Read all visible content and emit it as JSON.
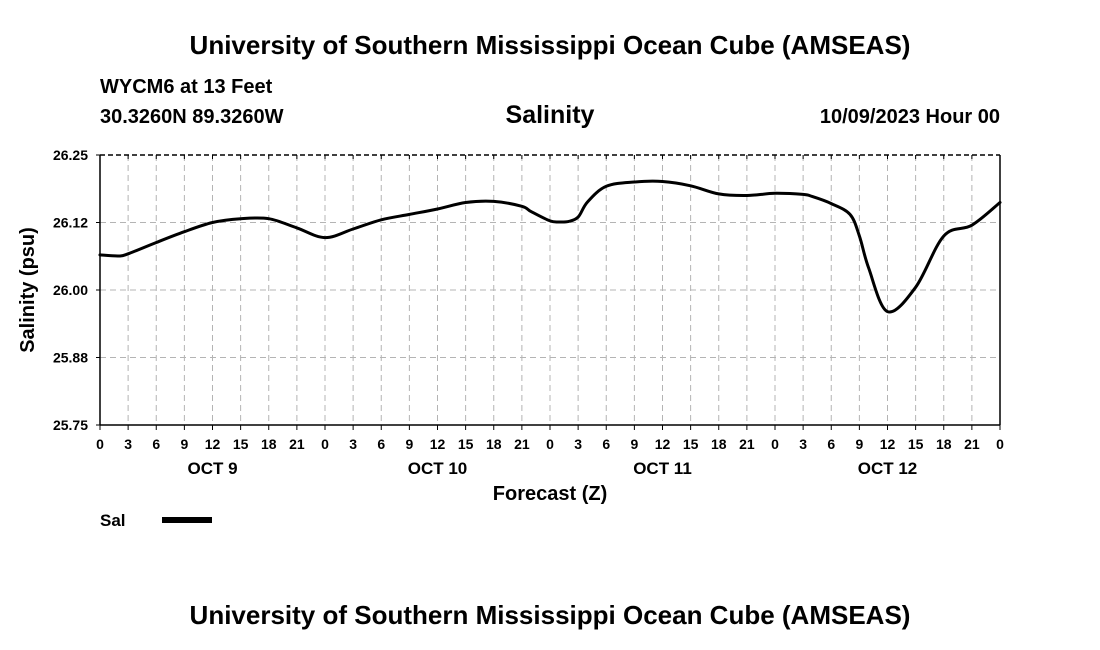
{
  "header": {
    "title": "University of Southern Mississippi Ocean Cube (AMSEAS)",
    "footer_title": "University of Southern Mississippi Ocean Cube (AMSEAS)",
    "station": "WYCM6 at 13 Feet",
    "coords": "30.3260N  89.3260W",
    "datetime": "10/09/2023 Hour 00"
  },
  "chart_data": {
    "type": "line",
    "title": "Salinity",
    "xlabel": "Forecast (Z)",
    "ylabel": "Salinity (psu)",
    "ylim": [
      25.75,
      26.25
    ],
    "xlim": [
      0,
      96
    ],
    "grid": true,
    "y_ticks": [
      "25.75",
      "25.88",
      "26.00",
      "26.12",
      "26.25"
    ],
    "x_tick_labels": [
      "0",
      "3",
      "6",
      "9",
      "12",
      "15",
      "18",
      "21",
      "0",
      "3",
      "6",
      "9",
      "12",
      "15",
      "18",
      "21",
      "0",
      "3",
      "6",
      "9",
      "12",
      "15",
      "18",
      "21",
      "0",
      "3",
      "6",
      "9",
      "12",
      "15",
      "18",
      "21",
      "0"
    ],
    "day_labels": [
      {
        "label": "OCT 9",
        "hour": 12
      },
      {
        "label": "OCT 10",
        "hour": 36
      },
      {
        "label": "OCT 11",
        "hour": 60
      },
      {
        "label": "OCT 12",
        "hour": 84
      }
    ],
    "legend": [
      {
        "name": "Sal",
        "color": "#000000"
      }
    ],
    "legend_position": "bottom-left",
    "series": [
      {
        "name": "Sal",
        "x": [
          0,
          2,
          3,
          6,
          9,
          12,
          15,
          18,
          21,
          24,
          27,
          30,
          33,
          36,
          39,
          42,
          45,
          46,
          48,
          49,
          50,
          51,
          52,
          54,
          57,
          60,
          63,
          66,
          69,
          72,
          75,
          76,
          78,
          80,
          81,
          82,
          84,
          87,
          90,
          93,
          96
        ],
        "y": [
          26.065,
          26.063,
          26.067,
          26.088,
          26.108,
          26.125,
          26.132,
          26.132,
          26.115,
          26.097,
          26.113,
          26.13,
          26.14,
          26.15,
          26.162,
          26.164,
          26.155,
          26.145,
          26.128,
          26.126,
          26.127,
          26.135,
          26.163,
          26.192,
          26.2,
          26.201,
          26.193,
          26.178,
          26.175,
          26.179,
          26.177,
          26.173,
          26.16,
          26.14,
          26.1,
          26.04,
          25.96,
          26.005,
          26.1,
          26.12,
          26.162
        ]
      }
    ]
  }
}
